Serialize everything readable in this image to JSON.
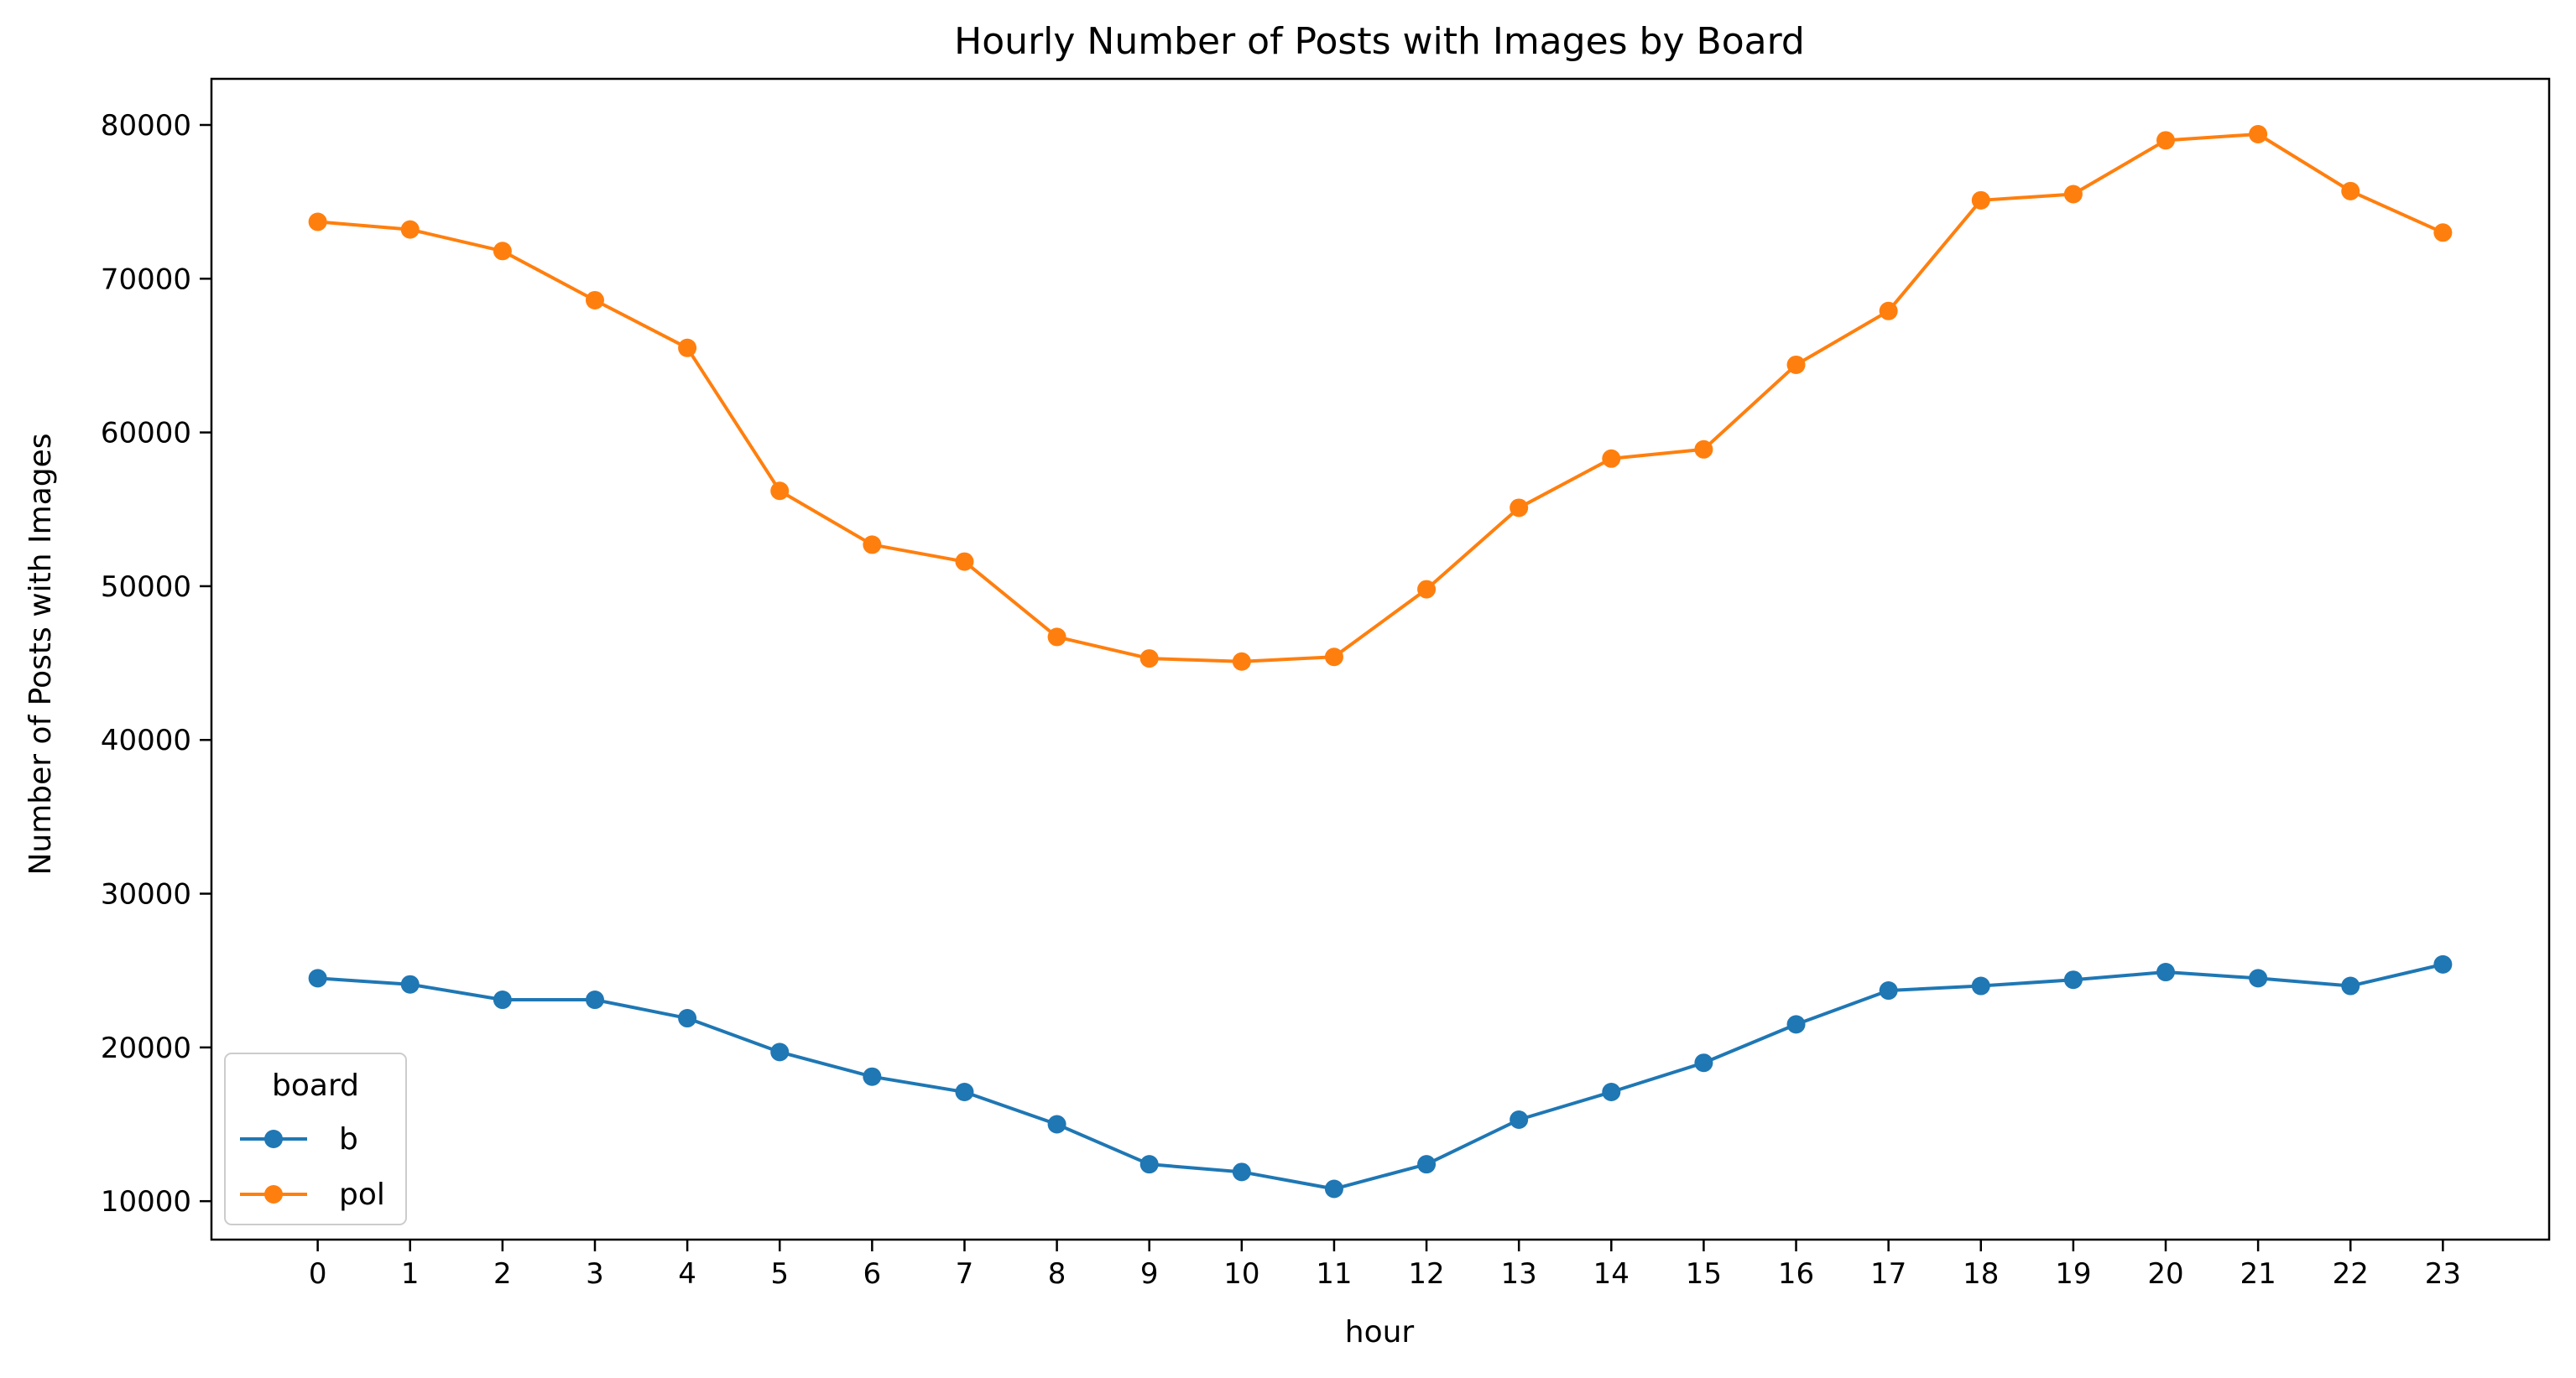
{
  "chart_data": {
    "type": "line",
    "title": "Hourly Number of Posts with Images by Board",
    "xlabel": "hour",
    "ylabel": "Number of Posts with Images",
    "x": [
      0,
      1,
      2,
      3,
      4,
      5,
      6,
      7,
      8,
      9,
      10,
      11,
      12,
      13,
      14,
      15,
      16,
      17,
      18,
      19,
      20,
      21,
      22,
      23
    ],
    "x_tick_labels": [
      "0",
      "1",
      "2",
      "3",
      "4",
      "5",
      "6",
      "7",
      "8",
      "9",
      "10",
      "11",
      "12",
      "13",
      "14",
      "15",
      "16",
      "17",
      "18",
      "19",
      "20",
      "21",
      "22",
      "23"
    ],
    "y_ticks": [
      10000,
      20000,
      30000,
      40000,
      50000,
      60000,
      70000,
      80000
    ],
    "y_tick_labels": [
      "10000",
      "20000",
      "30000",
      "40000",
      "50000",
      "60000",
      "70000",
      "80000"
    ],
    "xlim": [
      -1.15,
      24.15
    ],
    "ylim": [
      7500,
      83000
    ],
    "grid": false,
    "legend": {
      "title": "board",
      "placement": "lower-left"
    },
    "series": [
      {
        "name": "b",
        "color": "#1f77b4",
        "marker": "circle",
        "values": [
          24500,
          24100,
          23100,
          23100,
          21900,
          19700,
          18100,
          17100,
          15000,
          12400,
          11900,
          10800,
          12400,
          15300,
          17100,
          19000,
          21500,
          23700,
          24000,
          24400,
          24900,
          24500,
          24000,
          25400
        ]
      },
      {
        "name": "pol",
        "color": "#ff7f0e",
        "marker": "circle",
        "values": [
          73700,
          73200,
          71800,
          68600,
          65500,
          56200,
          52700,
          51600,
          46700,
          45300,
          45100,
          45400,
          49800,
          55100,
          58300,
          58900,
          64400,
          67900,
          75100,
          75500,
          79000,
          79400,
          75700,
          73000
        ]
      }
    ]
  }
}
